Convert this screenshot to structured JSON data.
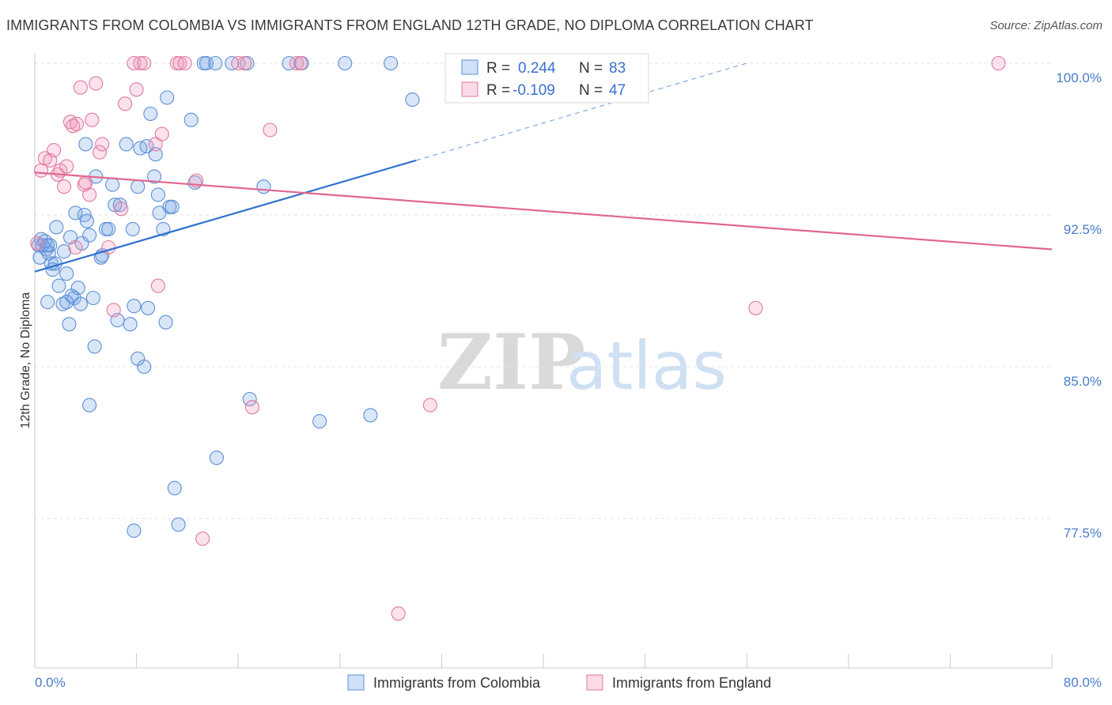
{
  "chart_data": {
    "type": "scatter",
    "title": "IMMIGRANTS FROM COLOMBIA VS IMMIGRANTS FROM ENGLAND 12TH GRADE, NO DIPLOMA CORRELATION CHART",
    "source": "Source: ZipAtlas.com",
    "ylabel": "12th Grade, No Diploma",
    "xlim": [
      0,
      80
    ],
    "ylim": [
      71,
      101.3
    ],
    "x_tick_labels": [
      "0.0%",
      "80.0%"
    ],
    "y_ticks": [
      {
        "value": 100.0,
        "label": "100.0%"
      },
      {
        "value": 92.5,
        "label": "92.5%"
      },
      {
        "value": 85.0,
        "label": "85.0%"
      },
      {
        "value": 77.5,
        "label": "77.5%"
      }
    ],
    "watermark": {
      "zip": "ZIP",
      "atlas": "atlas"
    },
    "legend": {
      "r_label": "R =",
      "n_label": "N =",
      "entries": [
        {
          "r": "0.244",
          "n": "83"
        },
        {
          "r": "-0.109",
          "n": "47"
        }
      ]
    },
    "series": [
      {
        "name": "Immigrants from Colombia",
        "color": "#5b8fd6",
        "fill": "rgba(120,165,230,0.28)",
        "trend": {
          "x0": 0,
          "y0": 89.7,
          "x1": 30,
          "y1": 95.2,
          "dash_x1": 56,
          "dash_y1": 100.0
        },
        "points": [
          [
            0.3,
            91.0
          ],
          [
            0.4,
            90.4
          ],
          [
            0.5,
            91.3
          ],
          [
            0.6,
            91.0
          ],
          [
            0.8,
            91.2
          ],
          [
            0.9,
            90.8
          ],
          [
            1.0,
            88.2
          ],
          [
            1.1,
            90.6
          ],
          [
            1.2,
            91.0
          ],
          [
            1.3,
            90.1
          ],
          [
            1.4,
            89.8
          ],
          [
            1.6,
            90.1
          ],
          [
            1.7,
            91.9
          ],
          [
            1.9,
            89.0
          ],
          [
            2.2,
            88.1
          ],
          [
            2.3,
            90.7
          ],
          [
            2.5,
            89.6
          ],
          [
            2.7,
            87.1
          ],
          [
            2.8,
            91.4
          ],
          [
            2.9,
            88.5
          ],
          [
            3.1,
            88.4
          ],
          [
            3.2,
            92.6
          ],
          [
            3.4,
            88.9
          ],
          [
            3.6,
            88.1
          ],
          [
            3.7,
            91.1
          ],
          [
            3.9,
            92.5
          ],
          [
            4.0,
            96.0
          ],
          [
            4.1,
            92.2
          ],
          [
            4.3,
            91.5
          ],
          [
            4.6,
            88.4
          ],
          [
            4.7,
            86.0
          ],
          [
            4.8,
            94.4
          ],
          [
            5.2,
            90.4
          ],
          [
            5.3,
            90.5
          ],
          [
            5.6,
            91.8
          ],
          [
            5.8,
            91.8
          ],
          [
            6.1,
            94.0
          ],
          [
            6.3,
            93.0
          ],
          [
            6.5,
            87.3
          ],
          [
            6.7,
            93.0
          ],
          [
            7.2,
            96.0
          ],
          [
            7.5,
            87.1
          ],
          [
            7.7,
            91.8
          ],
          [
            7.8,
            88.0
          ],
          [
            8.1,
            85.4
          ],
          [
            8.1,
            93.9
          ],
          [
            8.3,
            95.8
          ],
          [
            8.6,
            85.0
          ],
          [
            8.8,
            95.9
          ],
          [
            8.9,
            87.9
          ],
          [
            9.1,
            97.5
          ],
          [
            9.4,
            94.4
          ],
          [
            9.5,
            95.5
          ],
          [
            9.7,
            93.5
          ],
          [
            9.8,
            92.6
          ],
          [
            10.1,
            91.8
          ],
          [
            10.3,
            87.2
          ],
          [
            10.4,
            98.3
          ],
          [
            10.6,
            92.9
          ],
          [
            10.8,
            92.9
          ],
          [
            11.0,
            79.0
          ],
          [
            11.3,
            77.2
          ],
          [
            12.3,
            97.2
          ],
          [
            12.6,
            94.1
          ],
          [
            13.3,
            100.0
          ],
          [
            13.5,
            100.0
          ],
          [
            14.2,
            100.0
          ],
          [
            14.3,
            80.5
          ],
          [
            15.5,
            100.0
          ],
          [
            16.7,
            100.0
          ],
          [
            16.9,
            83.4
          ],
          [
            18.0,
            93.9
          ],
          [
            20.0,
            100.0
          ],
          [
            21.0,
            100.0
          ],
          [
            22.4,
            82.3
          ],
          [
            24.4,
            100.0
          ],
          [
            26.4,
            82.6
          ],
          [
            28.0,
            100.0
          ],
          [
            29.7,
            98.2
          ],
          [
            4.3,
            83.1
          ],
          [
            7.8,
            76.9
          ],
          [
            1.0,
            91.0
          ],
          [
            2.5,
            88.2
          ]
        ]
      },
      {
        "name": "Immigrants from England",
        "color": "#e07aa0",
        "fill": "rgba(240,150,185,0.28)",
        "trend": {
          "x0": 0,
          "y0": 94.6,
          "x1": 80,
          "y1": 90.8
        },
        "points": [
          [
            0.2,
            91.1
          ],
          [
            0.5,
            94.7
          ],
          [
            0.8,
            95.3
          ],
          [
            1.2,
            95.2
          ],
          [
            1.5,
            95.7
          ],
          [
            1.8,
            94.5
          ],
          [
            2.0,
            94.7
          ],
          [
            2.3,
            93.9
          ],
          [
            2.5,
            94.9
          ],
          [
            2.8,
            97.1
          ],
          [
            3.0,
            96.9
          ],
          [
            3.2,
            90.9
          ],
          [
            3.3,
            97.0
          ],
          [
            3.6,
            98.8
          ],
          [
            3.9,
            94.0
          ],
          [
            4.0,
            94.1
          ],
          [
            4.3,
            93.5
          ],
          [
            4.5,
            97.2
          ],
          [
            4.8,
            99.0
          ],
          [
            5.1,
            95.6
          ],
          [
            5.3,
            96.0
          ],
          [
            5.8,
            90.9
          ],
          [
            6.2,
            87.8
          ],
          [
            6.8,
            92.8
          ],
          [
            7.1,
            98.0
          ],
          [
            7.8,
            100.0
          ],
          [
            8.0,
            98.7
          ],
          [
            8.3,
            100.0
          ],
          [
            8.6,
            100.0
          ],
          [
            9.5,
            96.0
          ],
          [
            9.7,
            89.0
          ],
          [
            10.0,
            96.5
          ],
          [
            11.2,
            100.0
          ],
          [
            11.4,
            100.0
          ],
          [
            11.8,
            100.0
          ],
          [
            12.7,
            94.2
          ],
          [
            13.2,
            76.5
          ],
          [
            16.0,
            100.0
          ],
          [
            16.5,
            100.0
          ],
          [
            17.1,
            83.0
          ],
          [
            18.5,
            96.7
          ],
          [
            20.6,
            100.0
          ],
          [
            20.9,
            100.0
          ],
          [
            28.6,
            72.8
          ],
          [
            31.1,
            83.1
          ],
          [
            56.7,
            87.9
          ],
          [
            75.8,
            100.0
          ]
        ]
      }
    ]
  }
}
